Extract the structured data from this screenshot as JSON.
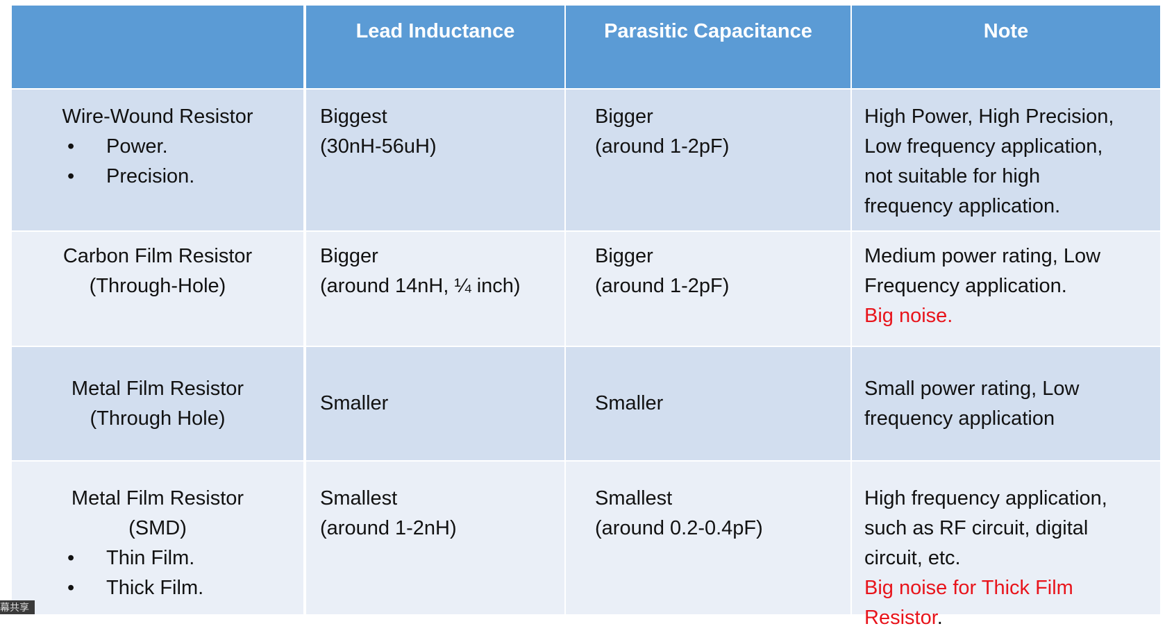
{
  "table": {
    "header": [
      "Lead Inductance",
      "Parasitic Capacitance",
      "Note"
    ],
    "rows": [
      {
        "name": [
          "Wire-Wound Resistor"
        ],
        "bullets": [
          "Power.",
          "Precision."
        ],
        "lead": [
          "Biggest",
          "(30nH-56uH)"
        ],
        "cap": [
          "Bigger",
          "(around 1-2pF)"
        ],
        "note": [
          [
            {
              "text": "High Power, High Precision,"
            }
          ],
          [
            {
              "text": " Low frequency application,"
            }
          ],
          [
            {
              "text": "not suitable for high"
            }
          ],
          [
            {
              "text": "frequency application."
            }
          ]
        ]
      },
      {
        "name": [
          "Carbon Film Resistor",
          "(Through-Hole)"
        ],
        "lead": [
          "Bigger",
          "(around 14nH, ¼ inch)"
        ],
        "cap": [
          "Bigger",
          "(around 1-2pF)"
        ],
        "note": [
          [
            {
              "text": "Medium power rating, Low"
            }
          ],
          [
            {
              "text": "Frequency application."
            }
          ],
          [
            {
              "text": "Big noise.",
              "color": "#e8141b"
            }
          ]
        ]
      },
      {
        "name": [
          "Metal Film Resistor",
          "(Through Hole)"
        ],
        "lead": [
          "Smaller"
        ],
        "cap": [
          "Smaller"
        ],
        "note": [
          [
            {
              "text": "Small power rating, Low"
            }
          ],
          [
            {
              "text": "frequency application"
            }
          ]
        ]
      },
      {
        "name": [
          "Metal Film Resistor",
          "(SMD)"
        ],
        "bullets": [
          "Thin Film.",
          "Thick Film."
        ],
        "lead": [
          "Smallest",
          "(around 1-2nH)"
        ],
        "cap": [
          "Smallest",
          "(around 0.2-0.4pF)"
        ],
        "note": [
          [
            {
              "text": "High frequency application,"
            }
          ],
          [
            {
              "text": "such as RF circuit, digital"
            }
          ],
          [
            {
              "text": "circuit, etc."
            }
          ],
          [
            {
              "text": "Big noise for Thick Film",
              "color": "#e8141b"
            }
          ],
          [
            {
              "text": "Resistor",
              "color": "#e8141b"
            },
            {
              "text": "."
            }
          ]
        ]
      }
    ]
  },
  "overlay": "幕共享"
}
